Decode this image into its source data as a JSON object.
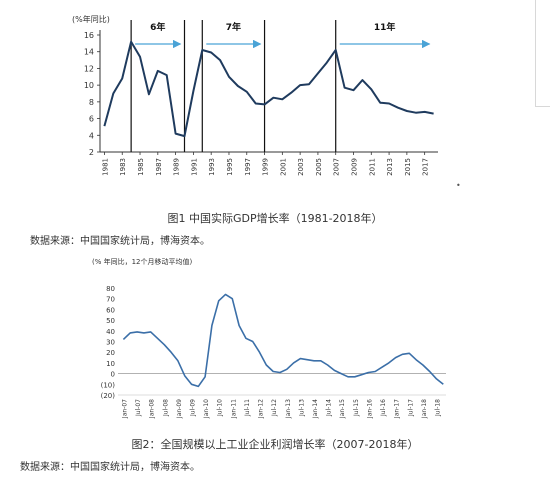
{
  "figure1": {
    "caption": "图1 中国实际GDP增长率（1981-2018年）",
    "source": "数据来源：中国国家统计局，博海资本。",
    "dot": "•",
    "chart_data": {
      "type": "line",
      "unit_label": "(%年同比)",
      "ylim": [
        2,
        16
      ],
      "yticks": [
        2,
        4,
        6,
        8,
        10,
        12,
        14,
        16
      ],
      "xticks": [
        "1981",
        "1983",
        "1985",
        "1987",
        "1989",
        "1991",
        "1993",
        "1995",
        "1997",
        "1999",
        "2001",
        "2003",
        "2005",
        "2007",
        "2009",
        "2011",
        "2013",
        "2015",
        "2017"
      ],
      "x": [
        1981,
        1982,
        1983,
        1984,
        1985,
        1986,
        1987,
        1988,
        1989,
        1990,
        1991,
        1992,
        1993,
        1994,
        1995,
        1996,
        1997,
        1998,
        1999,
        2000,
        2001,
        2002,
        2003,
        2004,
        2005,
        2006,
        2007,
        2008,
        2009,
        2010,
        2011,
        2012,
        2013,
        2014,
        2015,
        2016,
        2017,
        2018
      ],
      "values": [
        5.1,
        9.0,
        10.8,
        15.2,
        13.4,
        8.9,
        11.7,
        11.2,
        4.2,
        3.9,
        9.3,
        14.2,
        13.9,
        13.0,
        11.0,
        9.9,
        9.2,
        7.8,
        7.7,
        8.5,
        8.3,
        9.1,
        10.0,
        10.1,
        11.4,
        12.7,
        14.2,
        9.7,
        9.4,
        10.6,
        9.5,
        7.9,
        7.8,
        7.3,
        6.9,
        6.7,
        6.8,
        6.6
      ],
      "cycle_separators": [
        1984,
        1990,
        1992,
        1999,
        2007
      ],
      "annotations": [
        {
          "label": "6年",
          "start": 1984,
          "end": 1990
        },
        {
          "label": "7年",
          "start": 1992,
          "end": 1999
        },
        {
          "label": "11年",
          "start": 2007,
          "end": 2018
        }
      ],
      "line_color": "#1f3b5e",
      "arrow_color": "#4aa3d6"
    }
  },
  "figure2": {
    "caption": "图2：全国规模以上工业企业利润增长率（2007-2018年）",
    "source": "数据来源：中国国家统计局，博海资本。",
    "chart_data": {
      "type": "line",
      "unit_label": "(% 年同比，12个月移动平均值)",
      "ylim": [
        -20,
        80
      ],
      "yticks": [
        -20,
        -10,
        0,
        10,
        20,
        30,
        40,
        50,
        60,
        70,
        80
      ],
      "ytick_labels": [
        "(20)",
        "(10)",
        "0",
        "10",
        "20",
        "30",
        "40",
        "50",
        "60",
        "70",
        "80"
      ],
      "xticks": [
        "Jan-07",
        "Jul-07",
        "Jan-08",
        "Jul-08",
        "Jan-09",
        "Jul-09",
        "Jan-10",
        "Jul-10",
        "Jan-11",
        "Jul-11",
        "Jan-12",
        "Jul-12",
        "Jan-13",
        "Jul-13",
        "Jan-14",
        "Jul-14",
        "Jan-15",
        "Jul-15",
        "Jan-16",
        "Jul-16",
        "Jan-17",
        "Jul-17",
        "Jan-18",
        "Jul-18"
      ],
      "x": [
        2007.0,
        2007.25,
        2007.5,
        2007.75,
        2008.0,
        2008.25,
        2008.5,
        2008.75,
        2009.0,
        2009.25,
        2009.5,
        2009.75,
        2010.0,
        2010.25,
        2010.5,
        2010.75,
        2011.0,
        2011.25,
        2011.5,
        2011.75,
        2012.0,
        2012.25,
        2012.5,
        2012.75,
        2013.0,
        2013.25,
        2013.5,
        2013.75,
        2014.0,
        2014.25,
        2014.5,
        2014.75,
        2015.0,
        2015.25,
        2015.5,
        2015.75,
        2016.0,
        2016.25,
        2016.5,
        2016.75,
        2017.0,
        2017.25,
        2017.5,
        2017.75,
        2018.0,
        2018.25,
        2018.5,
        2018.75
      ],
      "values": [
        32,
        38,
        39,
        38,
        39,
        33,
        27,
        20,
        12,
        -2,
        -10,
        -12,
        -3,
        45,
        68,
        74,
        70,
        45,
        33,
        30,
        20,
        8,
        2,
        1,
        4,
        10,
        14,
        13,
        12,
        12,
        8,
        3,
        0,
        -3,
        -3,
        -1,
        1,
        2,
        6,
        10,
        15,
        18,
        19,
        13,
        8,
        2,
        -5,
        -10
      ],
      "line_color": "#3b6fa8"
    }
  }
}
